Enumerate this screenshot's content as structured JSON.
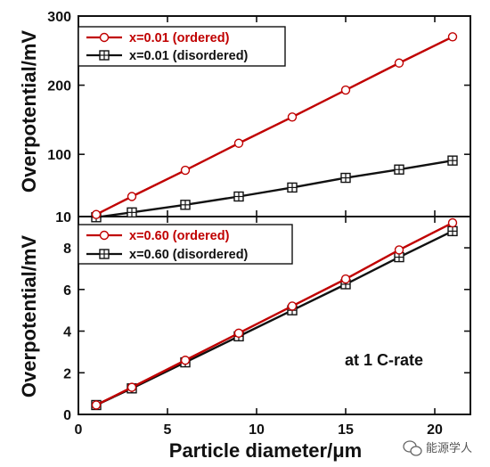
{
  "chart_data": [
    {
      "type": "line",
      "panel": "top",
      "ylabel": "Overpotential/mV",
      "ylim": [
        10,
        300
      ],
      "yticks": [
        "10",
        "100",
        "200",
        "300"
      ],
      "ytick_values": [
        10,
        100,
        200,
        300
      ],
      "xlim": [
        0,
        22
      ],
      "legend": "top-left",
      "series": [
        {
          "name": "x=0.01 (ordered)",
          "color": "#c00000",
          "marker": "circle",
          "x": [
            1,
            3,
            6,
            9,
            12,
            15,
            18,
            21
          ],
          "values": [
            13,
            39,
            77,
            116,
            154,
            193,
            232,
            270
          ]
        },
        {
          "name": "x=0.01 (disordered)",
          "color": "#111111",
          "marker": "square-cross",
          "x": [
            1,
            3,
            6,
            9,
            12,
            15,
            18,
            21
          ],
          "values": [
            9,
            16,
            27,
            39,
            52,
            66,
            78,
            91
          ]
        }
      ]
    },
    {
      "type": "line",
      "panel": "bottom",
      "ylabel": "Overpotential/mV",
      "xlabel": "Particle diameter/μm",
      "ylim": [
        0,
        9.5
      ],
      "yticks": [
        "0",
        "2",
        "4",
        "6",
        "8"
      ],
      "ytick_values": [
        0,
        2,
        4,
        6,
        8
      ],
      "xlim": [
        0,
        22
      ],
      "xticks": [
        "0",
        "5",
        "10",
        "15",
        "20"
      ],
      "xtick_values": [
        0,
        5,
        10,
        15,
        20
      ],
      "legend": "top-left",
      "annotation": "at 1 C-rate",
      "series": [
        {
          "name": "x=0.60 (ordered)",
          "color": "#c00000",
          "marker": "circle",
          "x": [
            1,
            3,
            6,
            9,
            12,
            15,
            18,
            21
          ],
          "values": [
            0.45,
            1.3,
            2.6,
            3.9,
            5.2,
            6.5,
            7.9,
            9.2
          ]
        },
        {
          "name": "x=0.60 (disordered)",
          "color": "#111111",
          "marker": "square-cross",
          "x": [
            1,
            3,
            6,
            9,
            12,
            15,
            18,
            21
          ],
          "values": [
            0.45,
            1.25,
            2.5,
            3.75,
            5.0,
            6.25,
            7.55,
            8.8
          ]
        }
      ]
    }
  ],
  "watermark": "能源学人",
  "watermark_icon": "wechat-icon"
}
